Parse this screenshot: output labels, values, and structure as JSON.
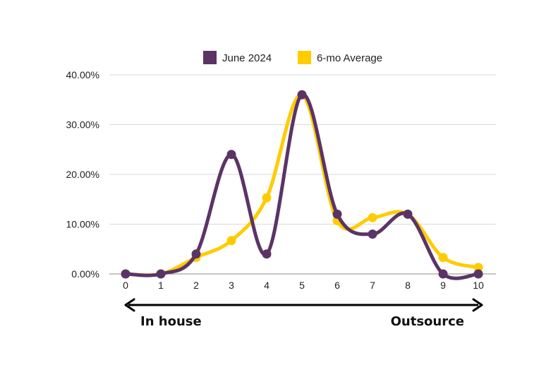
{
  "chart_data": {
    "type": "line",
    "smooth": true,
    "x": [
      0,
      1,
      2,
      3,
      4,
      5,
      6,
      7,
      8,
      9,
      10
    ],
    "y_tick_labels": [
      "0.00%",
      "10.00%",
      "20.00%",
      "30.00%",
      "40.00%"
    ],
    "ylim": [
      0,
      40
    ],
    "grid": true,
    "legend_position": "top",
    "series": [
      {
        "name": "June 2024",
        "color": "#5B3466",
        "values": [
          0,
          0,
          4,
          24,
          4,
          36,
          12,
          8,
          12,
          0,
          0
        ]
      },
      {
        "name": "6-mo Average",
        "color": "#FFCC00",
        "values": [
          0,
          0,
          3.3,
          6.7,
          15.3,
          36,
          10.7,
          11.3,
          12,
          3.3,
          1.3
        ]
      }
    ],
    "annotations": {
      "left_label": "In house",
      "right_label": "Outsource"
    }
  }
}
